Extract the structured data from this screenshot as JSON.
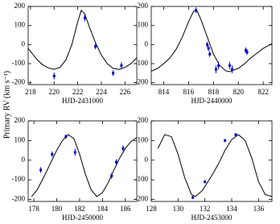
{
  "ylabel": "Primary RV (km s⁻¹)",
  "chart_data": [
    {
      "type": "line",
      "xlabel": "HJD-2431000",
      "xlim": [
        217.8,
        227
      ],
      "ylim": [
        -210,
        200
      ],
      "xticks": [
        218,
        220,
        222,
        224,
        226
      ],
      "yticks": [
        -200,
        -100,
        0,
        100,
        200
      ],
      "series": [
        {
          "type": "line",
          "color": "#000000",
          "x": [
            217.8,
            218.5,
            219,
            219.5,
            220,
            220.5,
            221,
            221.5,
            222,
            222.3,
            222.6,
            223,
            223.5,
            224,
            224.5,
            225,
            225.5,
            226,
            226.5,
            227
          ],
          "values": [
            -20,
            -75,
            -105,
            -122,
            -130,
            -120,
            -80,
            0,
            120,
            180,
            160,
            90,
            10,
            -55,
            -100,
            -125,
            -130,
            -120,
            -100,
            -70
          ]
        },
        {
          "type": "scatter",
          "color": "#0000cc",
          "x": [
            220,
            222.6,
            223.5,
            225,
            225.7
          ],
          "values": [
            -165,
            140,
            -10,
            -150,
            -110
          ],
          "errors": [
            18,
            18,
            15,
            15,
            18
          ]
        }
      ]
    },
    {
      "type": "line",
      "xlabel": "HJD-2440000",
      "xlim": [
        813,
        822.7
      ],
      "ylim": [
        -210,
        200
      ],
      "xticks": [
        814,
        816,
        818,
        820,
        822
      ],
      "yticks": [
        -200,
        -100,
        0,
        100,
        200
      ],
      "series": [
        {
          "type": "line",
          "color": "#000000",
          "x": [
            813,
            813.5,
            814,
            814.5,
            815,
            815.5,
            816,
            816.4,
            816.7,
            817,
            817.5,
            818,
            818.5,
            819,
            819.3,
            820,
            820.5,
            821,
            821.5,
            822,
            822.7
          ],
          "values": [
            -140,
            -125,
            -100,
            -70,
            -25,
            40,
            120,
            175,
            175,
            130,
            40,
            -50,
            -110,
            -138,
            -142,
            -125,
            -100,
            -70,
            -45,
            -20,
            5
          ]
        },
        {
          "type": "scatter",
          "color": "#0000cc",
          "x": [
            816.6,
            817.5,
            817.6,
            817.7,
            818.2,
            818.4,
            819.3,
            819.5,
            820.6,
            820.7
          ],
          "values": [
            180,
            0,
            -20,
            -50,
            -130,
            -110,
            -110,
            -130,
            -30,
            -40
          ],
          "errors": [
            15,
            15,
            15,
            15,
            20,
            20,
            20,
            20,
            15,
            15
          ]
        }
      ]
    },
    {
      "type": "line",
      "xlabel": "HJD-2450000",
      "xlim": [
        177.5,
        187
      ],
      "ylim": [
        -210,
        200
      ],
      "xticks": [
        178,
        180,
        182,
        184,
        186
      ],
      "yticks": [
        -200,
        -100,
        0,
        100,
        200
      ],
      "series": [
        {
          "type": "line",
          "color": "#000000",
          "x": [
            177.8,
            178.3,
            179,
            179.5,
            180,
            180.5,
            181,
            181.5,
            182,
            182.5,
            183,
            183.5,
            184,
            184.5,
            185,
            185.5,
            186,
            186.5,
            187
          ],
          "values": [
            -185,
            -150,
            -70,
            -10,
            50,
            100,
            130,
            110,
            30,
            -70,
            -150,
            -185,
            -165,
            -115,
            -50,
            10,
            60,
            95,
            115
          ]
        },
        {
          "type": "scatter",
          "color": "#0000cc",
          "x": [
            178.6,
            179.6,
            180.8,
            181.6,
            184.8,
            185.2,
            185.8
          ],
          "values": [
            -50,
            30,
            120,
            40,
            -80,
            -10,
            60
          ],
          "errors": [
            15,
            15,
            12,
            18,
            15,
            15,
            15
          ]
        }
      ]
    },
    {
      "type": "line",
      "xlabel": "HJD-2453000",
      "xlim": [
        128,
        137
      ],
      "ylim": [
        -210,
        200
      ],
      "xticks": [
        128,
        130,
        132,
        134,
        136
      ],
      "yticks": [
        -200,
        -100,
        0,
        100,
        200
      ],
      "series": [
        {
          "type": "line",
          "color": "#000000",
          "x": [
            128.5,
            129,
            129.5,
            130,
            130.5,
            131,
            131.3,
            131.8,
            132.5,
            133,
            133.5,
            134,
            134.5,
            135,
            135.5,
            136,
            136.5,
            137
          ],
          "values": [
            60,
            130,
            120,
            30,
            -90,
            -175,
            -185,
            -155,
            -80,
            -20,
            50,
            105,
            130,
            100,
            10,
            -110,
            -175,
            -185
          ]
        },
        {
          "type": "scatter",
          "color": "#0000cc",
          "x": [
            131.1,
            132,
            133.5,
            134.3
          ],
          "values": [
            -190,
            -110,
            100,
            130
          ],
          "errors": [
            8,
            8,
            8,
            8
          ]
        }
      ]
    }
  ]
}
